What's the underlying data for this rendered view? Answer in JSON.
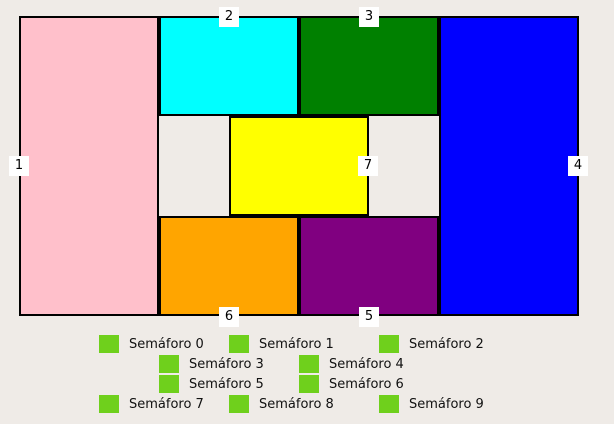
{
  "regions": [
    {
      "id": "1",
      "color": "#ffc0cb"
    },
    {
      "id": "2",
      "color": "#00ffff"
    },
    {
      "id": "3",
      "color": "#008000"
    },
    {
      "id": "4",
      "color": "#0000ff"
    },
    {
      "id": "5",
      "color": "#800080"
    },
    {
      "id": "6",
      "color": "#ffa500"
    },
    {
      "id": "7",
      "color": "#ffff00"
    }
  ],
  "empty_cell_color": "#efebe7",
  "semaforos": [
    {
      "label": "Semáforo 0",
      "color": "#6fd01c"
    },
    {
      "label": "Semáforo 1",
      "color": "#6fd01c"
    },
    {
      "label": "Semáforo 2",
      "color": "#6fd01c"
    },
    {
      "label": "Semáforo 3",
      "color": "#6fd01c"
    },
    {
      "label": "Semáforo 4",
      "color": "#6fd01c"
    },
    {
      "label": "Semáforo 5",
      "color": "#6fd01c"
    },
    {
      "label": "Semáforo 6",
      "color": "#6fd01c"
    },
    {
      "label": "Semáforo 7",
      "color": "#6fd01c"
    },
    {
      "label": "Semáforo 8",
      "color": "#6fd01c"
    },
    {
      "label": "Semáforo 9",
      "color": "#6fd01c"
    }
  ]
}
